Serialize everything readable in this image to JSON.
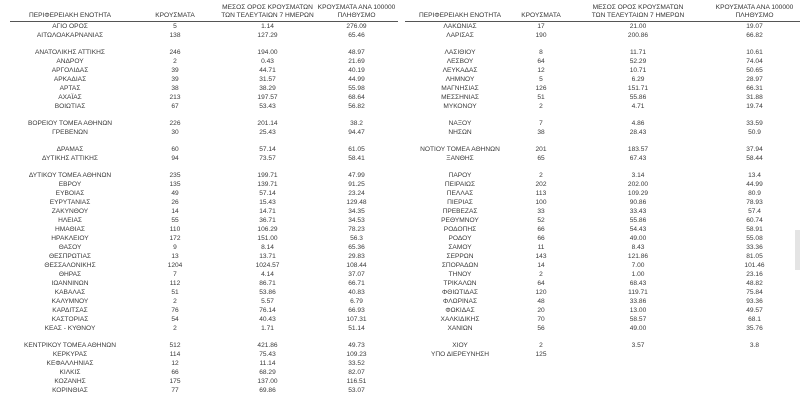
{
  "headers": {
    "region": "ΠΕΡΙΦΕΡΕΙΑΚΗ ΕΝΟΤΗΤΑ",
    "cases": "ΚΡΟΥΣΜΑΤΑ",
    "avg_line1": "ΜΕΣΟΣ ΟΡΟΣ ΚΡΟΥΣΜΑΤΩΝ",
    "avg_line2": "ΤΩΝ ΤΕΛΕΥΤΑΙΩΝ 7 ΗΜΕΡΩΝ",
    "per100k_line1": "ΚΡΟΥΣΜΑΤΑ ΑΝΑ 100000",
    "per100k_line2": "ΠΛΗΘΥΣΜΟ"
  },
  "left": {
    "groups": [
      [
        [
          "ΑΓΙΟ ΟΡΟΣ",
          "5",
          "1.14",
          "276.09"
        ],
        [
          "ΑΙΤΩΛΟΑΚΑΡΝΑΝΙΑΣ",
          "138",
          "127.29",
          "65.46"
        ]
      ],
      [
        [
          "ΑΝΑΤΟΛΙΚΗΣ ΑΤΤΙΚΗΣ",
          "246",
          "194.00",
          "48.97"
        ],
        [
          "ΑΝΔΡΟΥ",
          "2",
          "0.43",
          "21.69"
        ],
        [
          "ΑΡΓΟΛΙΔΑΣ",
          "39",
          "44.71",
          "40.19"
        ],
        [
          "ΑΡΚΑΔΙΑΣ",
          "39",
          "31.57",
          "44.99"
        ],
        [
          "ΑΡΤΑΣ",
          "38",
          "38.29",
          "55.98"
        ],
        [
          "ΑΧΑΪΑΣ",
          "213",
          "197.57",
          "68.64"
        ],
        [
          "ΒΟΙΩΤΙΑΣ",
          "67",
          "53.43",
          "56.82"
        ]
      ],
      [
        [
          "ΒΟΡΕΙΟΥ ΤΟΜΕΑ ΑΘΗΝΩΝ",
          "226",
          "201.14",
          "38.2"
        ],
        [
          "ΓΡΕΒΕΝΩΝ",
          "30",
          "25.43",
          "94.47"
        ]
      ],
      [
        [
          "ΔΡΑΜΑΣ",
          "60",
          "57.14",
          "61.05"
        ],
        [
          "ΔΥΤΙΚΗΣ ΑΤΤΙΚΗΣ",
          "94",
          "73.57",
          "58.41"
        ]
      ],
      [
        [
          "ΔΥΤΙΚΟΥ ΤΟΜΕΑ ΑΘΗΝΩΝ",
          "235",
          "199.71",
          "47.99"
        ],
        [
          "ΕΒΡΟΥ",
          "135",
          "139.71",
          "91.25"
        ],
        [
          "ΕΥΒΟΙΑΣ",
          "49",
          "57.14",
          "23.24"
        ],
        [
          "ΕΥΡΥΤΑΝΙΑΣ",
          "26",
          "15.43",
          "129.48"
        ],
        [
          "ΖΑΚΥΝΘΟΥ",
          "14",
          "14.71",
          "34.35"
        ],
        [
          "ΗΛΕΙΑΣ",
          "55",
          "36.71",
          "34.53"
        ],
        [
          "ΗΜΑΘΙΑΣ",
          "110",
          "106.29",
          "78.23"
        ],
        [
          "ΗΡΑΚΛΕΙΟΥ",
          "172",
          "151.00",
          "56.3"
        ],
        [
          "ΘΑΣΟΥ",
          "9",
          "8.14",
          "65.36"
        ],
        [
          "ΘΕΣΠΡΩΤΙΑΣ",
          "13",
          "13.71",
          "29.83"
        ],
        [
          "ΘΕΣΣΑΛΟΝΙΚΗΣ",
          "1204",
          "1024.57",
          "108.44"
        ],
        [
          "ΘΗΡΑΣ",
          "7",
          "4.14",
          "37.07"
        ],
        [
          "ΙΩΑΝΝΙΝΩΝ",
          "112",
          "86.71",
          "66.71"
        ],
        [
          "ΚΑΒΑΛΑΣ",
          "51",
          "53.86",
          "40.83"
        ],
        [
          "ΚΑΛΥΜΝΟΥ",
          "2",
          "5.57",
          "6.79"
        ],
        [
          "ΚΑΡΔΙΤΣΑΣ",
          "76",
          "76.14",
          "66.93"
        ],
        [
          "ΚΑΣΤΟΡΙΑΣ",
          "54",
          "40.43",
          "107.31"
        ],
        [
          "ΚΕΑΣ - ΚΥΘΝΟΥ",
          "2",
          "1.71",
          "51.14"
        ]
      ],
      [
        [
          "ΚΕΝΤΡΙΚΟΥ ΤΟΜΕΑ ΑΘΗΝΩΝ",
          "512",
          "421.86",
          "49.73"
        ],
        [
          "ΚΕΡΚΥΡΑΣ",
          "114",
          "75.43",
          "109.23"
        ],
        [
          "ΚΕΦΑΛΛΗΝΙΑΣ",
          "12",
          "11.14",
          "33.52"
        ],
        [
          "ΚΙΛΚΙΣ",
          "66",
          "68.29",
          "82.07"
        ],
        [
          "ΚΟΖΑΝΗΣ",
          "175",
          "137.00",
          "116.51"
        ],
        [
          "ΚΟΡΙΝΘΙΑΣ",
          "77",
          "69.86",
          "53.07"
        ]
      ]
    ]
  },
  "right": {
    "groups": [
      [
        [
          "ΛΑΚΩΝΙΑΣ",
          "17",
          "21.00",
          "19.07"
        ],
        [
          "ΛΑΡΙΣΑΣ",
          "190",
          "200.86",
          "66.82"
        ]
      ],
      [
        [
          "ΛΑΣΙΘΙΟΥ",
          "8",
          "11.71",
          "10.61"
        ],
        [
          "ΛΕΣΒΟΥ",
          "64",
          "52.29",
          "74.04"
        ],
        [
          "ΛΕΥΚΑΔΑΣ",
          "12",
          "10.71",
          "50.65"
        ],
        [
          "ΛΗΜΝΟΥ",
          "5",
          "6.29",
          "28.97"
        ],
        [
          "ΜΑΓΝΗΣΙΑΣ",
          "126",
          "151.71",
          "66.31"
        ],
        [
          "ΜΕΣΣΗΝΙΑΣ",
          "51",
          "55.86",
          "31.88"
        ],
        [
          "ΜΥΚΟΝΟΥ",
          "2",
          "4.71",
          "19.74"
        ]
      ],
      [
        [
          "ΝΑΞΟΥ",
          "7",
          "4.86",
          "33.59"
        ],
        [
          "ΝΗΣΩΝ",
          "38",
          "28.43",
          "50.9"
        ]
      ],
      [
        [
          "ΝΟΤΙΟΥ ΤΟΜΕΑ ΑΘΗΝΩΝ",
          "201",
          "183.57",
          "37.94"
        ],
        [
          "ΞΑΝΘΗΣ",
          "65",
          "67.43",
          "58.44"
        ]
      ],
      [
        [
          "ΠΑΡΟΥ",
          "2",
          "3.14",
          "13.4"
        ],
        [
          "ΠΕΙΡΑΙΩΣ",
          "202",
          "202.00",
          "44.99"
        ],
        [
          "ΠΕΛΛΑΣ",
          "113",
          "109.29",
          "80.9"
        ],
        [
          "ΠΙΕΡΙΑΣ",
          "100",
          "90.86",
          "78.93"
        ],
        [
          "ΠΡΕΒΕΖΑΣ",
          "33",
          "33.43",
          "57.4"
        ],
        [
          "ΡΕΘΥΜΝΟΥ",
          "52",
          "55.86",
          "60.74"
        ],
        [
          "ΡΟΔΟΠΗΣ",
          "66",
          "54.43",
          "58.91"
        ],
        [
          "ΡΟΔΟΥ",
          "66",
          "49.00",
          "55.08"
        ],
        [
          "ΣΑΜΟΥ",
          "11",
          "8.43",
          "33.36"
        ],
        [
          "ΣΕΡΡΩΝ",
          "143",
          "121.86",
          "81.05"
        ],
        [
          "ΣΠΟΡΑΔΩΝ",
          "14",
          "7.00",
          "101.46"
        ],
        [
          "ΤΗΝΟΥ",
          "2",
          "1.00",
          "23.16"
        ],
        [
          "ΤΡΙΚΑΛΩΝ",
          "64",
          "68.43",
          "48.82"
        ],
        [
          "ΦΘΙΩΤΙΔΑΣ",
          "120",
          "119.71",
          "75.84"
        ],
        [
          "ΦΛΩΡΙΝΑΣ",
          "48",
          "33.86",
          "93.36"
        ],
        [
          "ΦΩΚΙΔΑΣ",
          "20",
          "13.00",
          "49.57"
        ],
        [
          "ΧΑΛΚΙΔΙΚΗΣ",
          "70",
          "58.57",
          "68.1"
        ],
        [
          "ΧΑΝΙΩΝ",
          "56",
          "49.00",
          "35.76"
        ]
      ],
      [
        [
          "ΧΙΟΥ",
          "2",
          "3.57",
          "3.8"
        ],
        [
          "ΥΠΟ ΔΙΕΡΕΥΝΗΣΗ",
          "125",
          "",
          ""
        ]
      ]
    ]
  }
}
